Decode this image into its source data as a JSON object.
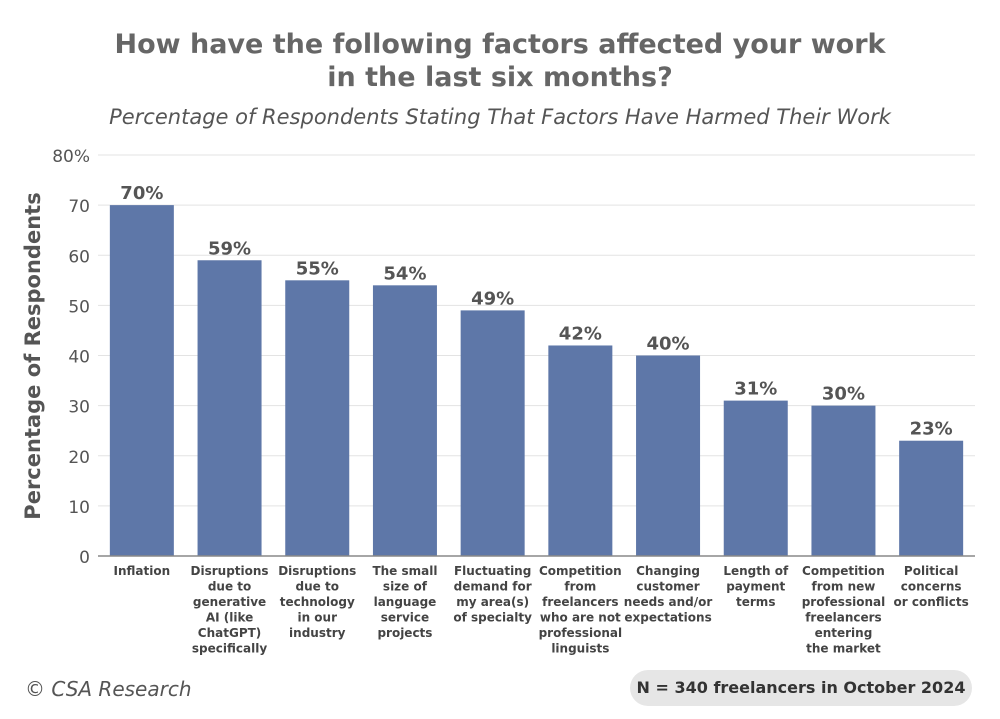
{
  "title_line1": "How have the following factors affected your work",
  "title_line2": "in the last six months?",
  "subtitle": "Percentage of Respondents Stating That Factors Have Harmed Their Work",
  "copyright": "© CSA Research",
  "sample_note": "N = 340 freelancers in October 2024",
  "colors": {
    "bar": "#5e77a8",
    "grid": "#e3e3e3",
    "axis": "#888888"
  },
  "chart_data": {
    "type": "bar",
    "ylabel": "Percentage of Respondents",
    "ylim": [
      0,
      80
    ],
    "yticks": [
      "0",
      "10",
      "20",
      "30",
      "40",
      "50",
      "60",
      "70",
      "80%"
    ],
    "grid": true,
    "categories": [
      [
        "Inflation"
      ],
      [
        "Disruptions",
        "due to",
        "generative",
        "AI (like",
        "ChatGPT)",
        "specifically"
      ],
      [
        "Disruptions",
        "due to",
        "technology",
        "in our",
        "industry"
      ],
      [
        "The small",
        "size of",
        "language",
        "service",
        "projects"
      ],
      [
        "Fluctuating",
        "demand for",
        "my area(s)",
        "of specialty"
      ],
      [
        "Competition",
        "from",
        "freelancers",
        "who are not",
        "professional",
        "linguists"
      ],
      [
        "Changing",
        "customer",
        "needs and/or",
        "expectations"
      ],
      [
        "Length of",
        "payment",
        "terms"
      ],
      [
        "Competition",
        "from new",
        "professional",
        "freelancers",
        "entering",
        "the market"
      ],
      [
        "Political",
        "concerns",
        "or conflicts"
      ]
    ],
    "values": [
      70,
      59,
      55,
      54,
      49,
      42,
      40,
      31,
      30,
      23
    ],
    "value_labels": [
      "70%",
      "59%",
      "55%",
      "54%",
      "49%",
      "42%",
      "40%",
      "31%",
      "30%",
      "23%"
    ]
  }
}
